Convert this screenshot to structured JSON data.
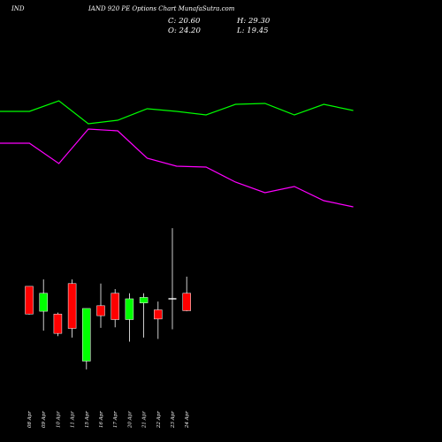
{
  "header": {
    "ticker": "IND",
    "title": "IAND 920  PE Options  Chart MunafaSutra.com"
  },
  "ohlc": {
    "close": "C: 20.60",
    "open": "O: 24.20",
    "high": "H: 29.30",
    "low": "L: 19.45"
  },
  "chart_data": {
    "type": "candlestick",
    "title": "IAND 920  PE Options  Chart MunafaSutra.com",
    "categories": [
      "08 Apr",
      "09 Apr",
      "10 Apr",
      "11 Apr",
      "15 Apr",
      "16 Apr",
      "17 Apr",
      "20 Apr",
      "21 Apr",
      "22 Apr",
      "23 Apr",
      "24 Apr"
    ],
    "candles": [
      {
        "open": 33.0,
        "close": 23.0,
        "high": 33.0,
        "low": 22.8,
        "color": "red"
      },
      {
        "open": 24.0,
        "close": 30.5,
        "high": 35.5,
        "low": 17.0,
        "color": "green"
      },
      {
        "open": 23.0,
        "close": 16.0,
        "high": 23.5,
        "low": 15.0,
        "color": "red"
      },
      {
        "open": 34.0,
        "close": 17.8,
        "high": 35.5,
        "low": 14.5,
        "color": "red"
      },
      {
        "open": 6.0,
        "close": 25.0,
        "high": 25.0,
        "low": 3.0,
        "color": "green"
      },
      {
        "open": 26.0,
        "close": 22.4,
        "high": 34.0,
        "low": 18.0,
        "color": "red"
      },
      {
        "open": 30.5,
        "close": 21.0,
        "high": 32.0,
        "low": 18.2,
        "color": "red"
      },
      {
        "open": 21.0,
        "close": 28.5,
        "high": 30.5,
        "low": 13.0,
        "color": "green"
      },
      {
        "open": 27.0,
        "close": 29.0,
        "high": 30.5,
        "low": 14.5,
        "color": "green"
      },
      {
        "open": 24.5,
        "close": 21.2,
        "high": 27.5,
        "low": 14.0,
        "color": "red"
      },
      {
        "open": 28.5,
        "close": 28.5,
        "high": 54.0,
        "low": 17.5,
        "color": "white"
      },
      {
        "open": 30.5,
        "close": 24.2,
        "high": 36.5,
        "low": 24.0,
        "color": "red"
      }
    ],
    "line_upper": [
      126,
      126,
      114,
      140,
      136,
      123,
      126,
      130,
      118,
      117,
      130,
      118,
      125
    ],
    "line_lower": [
      162,
      162,
      185,
      146,
      148,
      179,
      188,
      189,
      206,
      218,
      211,
      227,
      234
    ],
    "colors": {
      "green_line": "#00ff00",
      "magenta_line": "#ff00ff",
      "up_candle": "#00ff00",
      "down_candle": "#ff0000",
      "doji": "#ffffff",
      "background": "#000000"
    }
  }
}
